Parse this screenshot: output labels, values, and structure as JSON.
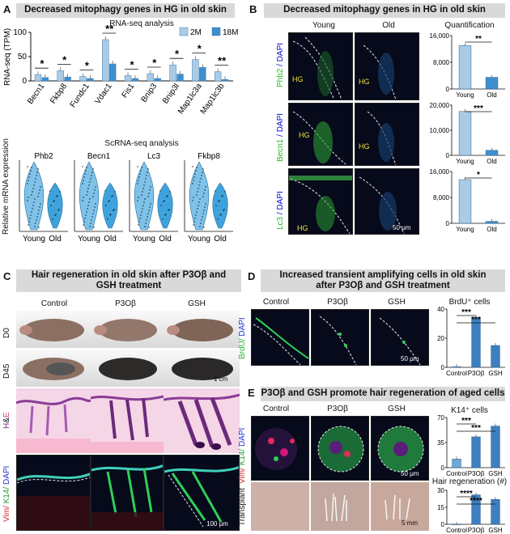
{
  "panels": {
    "A": {
      "letter": "A",
      "banner": "Decreased mitophagy genes in HG in old skin",
      "rnaseq_title": "RNA-seq analysis",
      "ylabel": "RNA-seq (TPM)",
      "scrna_title": "ScRNA-seq analysis",
      "scrna_ylabel": "Relative mRNA expression",
      "violin_genes": [
        "Phb2",
        "Becn1",
        "Lc3",
        "Fkbp8"
      ],
      "violin_groups": [
        "Young",
        "Old"
      ],
      "legend": [
        "2M",
        "18M"
      ]
    },
    "B": {
      "letter": "B",
      "banner": "Decreased mitophagy genes in HG in old skin",
      "col_young": "Young",
      "col_old": "Old",
      "quant_title": "Quantification",
      "rows": [
        "Phb2 / DAPI",
        "Becn1 / DAPI",
        "Lc3 / DAPI"
      ],
      "row_marker": [
        "Phb2",
        "Becn1",
        "Lc3"
      ],
      "dapi": "/ DAPI",
      "hg": "HG",
      "scale": "50 μm"
    },
    "C": {
      "letter": "C",
      "banner": "Hair regeneration in old skin after P3Oβ and GSH treatment",
      "cols": [
        "Control",
        "P3Oβ",
        "GSH"
      ],
      "rows": [
        "D0",
        "D45",
        "H&E",
        "Vim/ K14/ DAPI"
      ],
      "he_h": "H",
      "he_amp": "&",
      "he_e": "E",
      "vim": "Vim/",
      "k14": "K14/",
      "dapi": "DAPI",
      "scale_cm": "1 cm",
      "scale_um": "100 μm"
    },
    "D": {
      "letter": "D",
      "banner": "Increased transient amplifying cells in old skin after P3Oβ and GSH treatment",
      "cols": [
        "Control",
        "P3Oβ",
        "GSH"
      ],
      "row": "BrdU/ DAPI",
      "brdu": "BrdU/",
      "dapi": "DAPI",
      "quant_title": "BrdU⁺ cells",
      "scale": "50 μm"
    },
    "E": {
      "letter": "E",
      "banner": "P3Oβ and GSH promote hair regeneration of aged cells",
      "cols": [
        "Control",
        "P3Oβ",
        "GSH"
      ],
      "rows": [
        "Vim/ K14/ DAPI",
        "Transplant"
      ],
      "vim": "Vim/",
      "k14": "K14/",
      "dapi": "DAPI",
      "k14_title": "K14⁺ cells",
      "hair_title": "Hair regeneration (#)",
      "scale_um": "50 μm",
      "scale_mm": "5 mm"
    }
  },
  "chart_data": [
    {
      "type": "bar",
      "id": "A-rnaseq",
      "title": "RNA-seq analysis",
      "ylabel": "RNA-seq (TPM)",
      "ylim": [
        0,
        100
      ],
      "yticks": [
        0,
        50,
        100
      ],
      "categories": [
        "Becn1",
        "Fkbp8",
        "Fundc1",
        "Vdac1",
        "Fis1",
        "Bnip3",
        "Bnip3l",
        "Map1lc3a",
        "Map1lc3b"
      ],
      "series": [
        {
          "name": "2M",
          "color": "#a9cbe6",
          "values": [
            13,
            21,
            9,
            85,
            11,
            15,
            33,
            44,
            19
          ]
        },
        {
          "name": "18M",
          "color": "#3d8fd0",
          "values": [
            7,
            8,
            5,
            35,
            5,
            5,
            14,
            28,
            3
          ]
        }
      ],
      "significance": [
        "*",
        "*",
        "*",
        "**",
        "*",
        "*",
        "*",
        "*",
        "**"
      ]
    },
    {
      "type": "bar",
      "id": "B-phb2",
      "categories": [
        "Young",
        "Old"
      ],
      "values": [
        13000,
        3500
      ],
      "ylim": [
        0,
        16000
      ],
      "yticks": [
        0,
        8000,
        16000
      ],
      "ytick_labels": [
        "0",
        "8,000",
        "16,000"
      ],
      "significance": "**"
    },
    {
      "type": "bar",
      "id": "B-becn1",
      "categories": [
        "Young",
        "Old"
      ],
      "values": [
        17500,
        2000
      ],
      "ylim": [
        0,
        20000
      ],
      "yticks": [
        0,
        10000,
        20000
      ],
      "ytick_labels": [
        "0",
        "10,000",
        "20,000"
      ],
      "significance": "***"
    },
    {
      "type": "bar",
      "id": "B-lc3",
      "categories": [
        "Young",
        "Old"
      ],
      "values": [
        13500,
        600
      ],
      "ylim": [
        0,
        16000
      ],
      "yticks": [
        0,
        8000,
        16000
      ],
      "ytick_labels": [
        "0",
        "8,000",
        "16,000"
      ],
      "significance": "*"
    },
    {
      "type": "bar",
      "id": "D-brdu",
      "title": "BrdU⁺ cells",
      "categories": [
        "Control",
        "P3Oβ",
        "GSH"
      ],
      "values": [
        0.5,
        34,
        15
      ],
      "ylim": [
        0,
        40
      ],
      "yticks": [
        0,
        20,
        40
      ],
      "significance": [
        "***",
        "***"
      ]
    },
    {
      "type": "bar",
      "id": "E-k14",
      "title": "K14⁺ cells",
      "categories": [
        "Control",
        "P3Oβ",
        "GSH"
      ],
      "values": [
        12,
        43,
        58
      ],
      "ylim": [
        0,
        70
      ],
      "yticks": [
        0,
        35,
        70
      ],
      "significance": [
        "***",
        "***"
      ]
    },
    {
      "type": "bar",
      "id": "E-hair",
      "title": "Hair regeneration (#)",
      "categories": [
        "Control",
        "P3Oβ",
        "GSH"
      ],
      "values": [
        0,
        26,
        22
      ],
      "ylim": [
        0,
        30
      ],
      "yticks": [
        0,
        15,
        30
      ],
      "significance": [
        "****",
        "****"
      ]
    }
  ]
}
